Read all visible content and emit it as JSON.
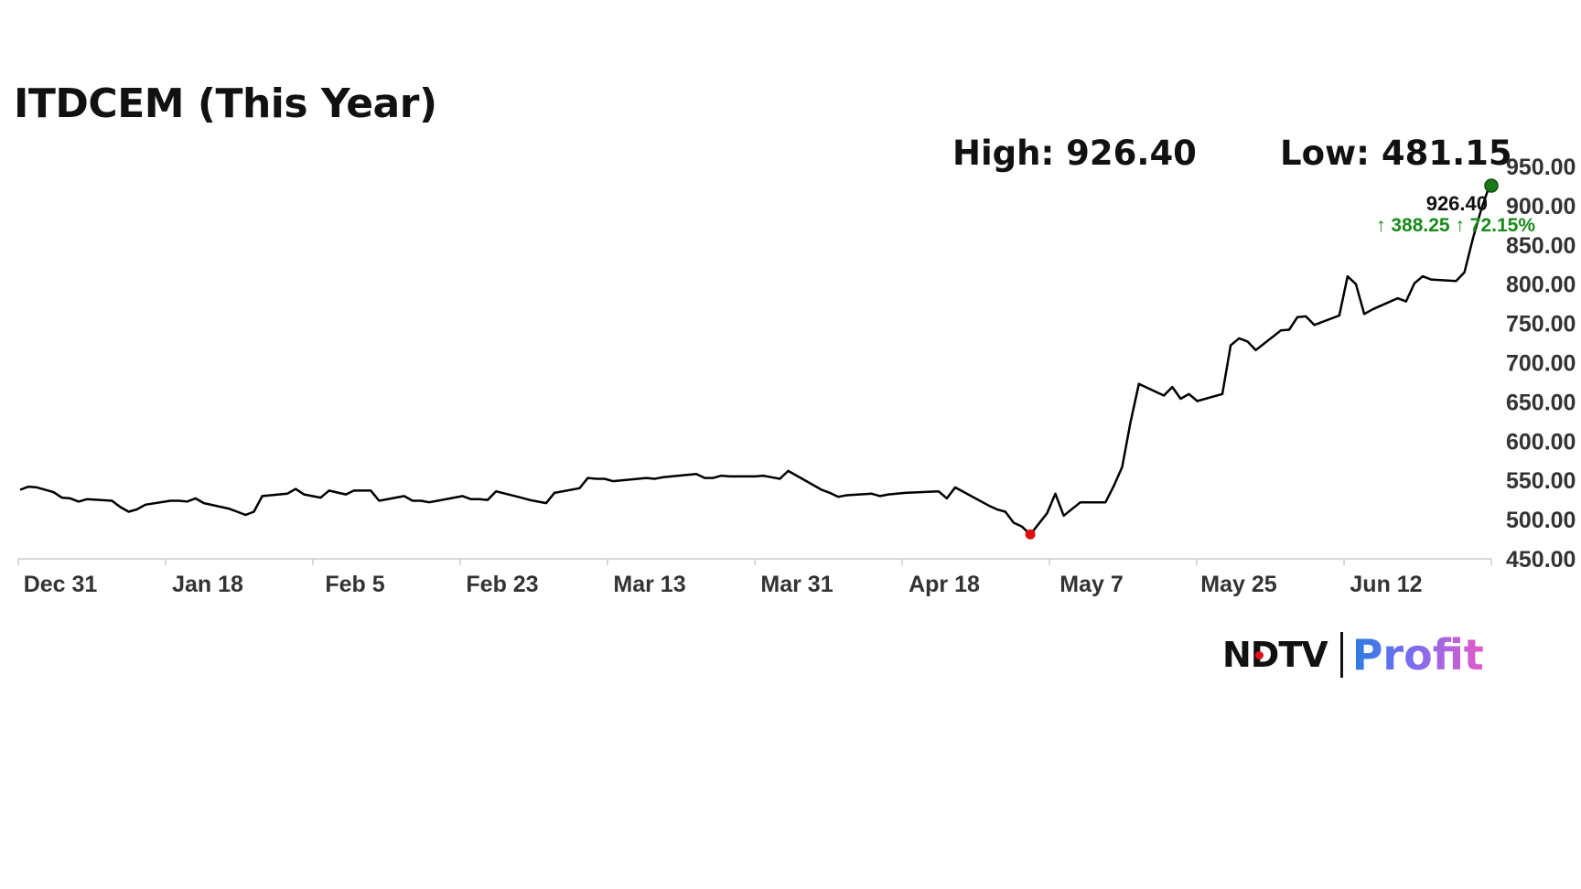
{
  "title": "ITDCEM (This Year)",
  "high_label": "High: 926.40",
  "low_label": "Low: 481.15",
  "last_price": "926.40",
  "change_text": "↑ 388.25 ↑ 72.15%",
  "logo": {
    "ndtv": "NDTV",
    "profit": "Profit"
  },
  "colors": {
    "line": "#000000",
    "high_marker": "#1a7a1a",
    "low_marker": "#e01010",
    "change_text": "#1a8a1a",
    "axis": "#cccccc",
    "tick_text": "#333333"
  },
  "chart_data": {
    "type": "line",
    "title": "ITDCEM (This Year)",
    "xlabel": "",
    "ylabel": "",
    "x_ticks": [
      "Dec 31",
      "Jan 18",
      "Feb 5",
      "Feb 23",
      "Mar 13",
      "Mar 31",
      "Apr 18",
      "May 7",
      "May 25",
      "Jun 12"
    ],
    "y_ticks": [
      "950.00",
      "900.00",
      "850.00",
      "800.00",
      "750.00",
      "700.00",
      "650.00",
      "600.00",
      "550.00",
      "500.00",
      "450.00"
    ],
    "ylim": [
      450,
      950
    ],
    "grid": false,
    "legend": "none",
    "high": {
      "date": "Jun 20",
      "value": 926.4
    },
    "low": {
      "date": "Apr 26",
      "value": 481.15
    },
    "series": [
      {
        "x": [
          "Dec 26",
          "Dec 27",
          "Dec 28",
          "Dec 30",
          "Dec 31",
          "Jan 1",
          "Jan 2",
          "Jan 3",
          "Jan 6",
          "Jan 7",
          "Jan 8",
          "Jan 9",
          "Jan 10",
          "Jan 13",
          "Jan 14",
          "Jan 15",
          "Jan 16",
          "Jan 17",
          "Jan 20",
          "Jan 21",
          "Jan 22",
          "Jan 23",
          "Jan 24",
          "Jan 27",
          "Jan 28",
          "Jan 29",
          "Jan 30",
          "Jan 31",
          "Feb 1",
          "Feb 3",
          "Feb 4",
          "Feb 5",
          "Feb 6",
          "Feb 7",
          "Feb 10",
          "Feb 11",
          "Feb 12",
          "Feb 13",
          "Feb 14",
          "Feb 17",
          "Feb 18",
          "Feb 19",
          "Feb 20",
          "Feb 21",
          "Feb 24",
          "Feb 25",
          "Feb 27",
          "Feb 28",
          "Mar 3",
          "Mar 4",
          "Mar 5",
          "Mar 6",
          "Mar 7",
          "Mar 10",
          "Mar 11",
          "Mar 12",
          "Mar 13",
          "Mar 17",
          "Mar 18",
          "Mar 19",
          "Mar 20",
          "Mar 21",
          "Mar 24",
          "Mar 25",
          "Mar 26",
          "Mar 27",
          "Mar 28",
          "Apr 1",
          "Apr 2",
          "Apr 3",
          "Apr 4",
          "Apr 7",
          "Apr 8",
          "Apr 9",
          "Apr 11",
          "Apr 15",
          "Apr 16",
          "Apr 17",
          "Apr 21",
          "Apr 22",
          "Apr 23",
          "Apr 24",
          "Apr 25",
          "Apr 26",
          "Apr 28",
          "Apr 29",
          "Apr 30",
          "May 2",
          "May 5",
          "May 6",
          "May 7",
          "May 8",
          "May 9",
          "May 12",
          "May 13",
          "May 14",
          "May 15",
          "May 16",
          "May 19",
          "May 20",
          "May 21",
          "May 22",
          "May 23",
          "May 26",
          "May 27",
          "May 28",
          "May 29",
          "May 30",
          "Jun 2",
          "Jun 3",
          "Jun 4",
          "Jun 5",
          "Jun 6",
          "Jun 9",
          "Jun 10",
          "Jun 11",
          "Jun 12",
          "Jun 13",
          "Jun 16",
          "Jun 17",
          "Jun 18",
          "Jun 19",
          "Jun 20"
        ],
        "values": [
          538,
          542,
          541,
          535,
          528,
          527,
          523,
          526,
          524,
          516,
          510,
          513,
          519,
          524,
          524,
          523,
          527,
          521,
          514,
          510,
          506,
          510,
          530,
          533,
          539,
          532,
          530,
          528,
          537,
          532,
          537,
          537,
          537,
          524,
          530,
          524,
          524,
          522,
          524,
          530,
          526,
          526,
          525,
          536,
          528,
          525,
          521,
          534,
          540,
          553,
          552,
          552,
          549,
          552,
          553,
          552,
          554,
          558,
          553,
          553,
          556,
          555,
          555,
          556,
          554,
          552,
          562,
          538,
          534,
          529,
          531,
          533,
          530,
          532,
          534,
          536,
          527,
          541,
          518,
          513,
          510,
          496,
          491,
          481,
          508,
          533,
          505,
          522,
          522,
          543,
          567,
          624,
          673,
          658,
          669,
          654,
          660,
          651,
          660,
          722,
          731,
          727,
          716,
          741,
          742,
          758,
          759,
          748,
          760,
          810,
          800,
          762,
          768,
          782,
          778,
          801,
          810,
          806,
          804,
          815,
          858,
          895,
          926
        ]
      }
    ]
  }
}
